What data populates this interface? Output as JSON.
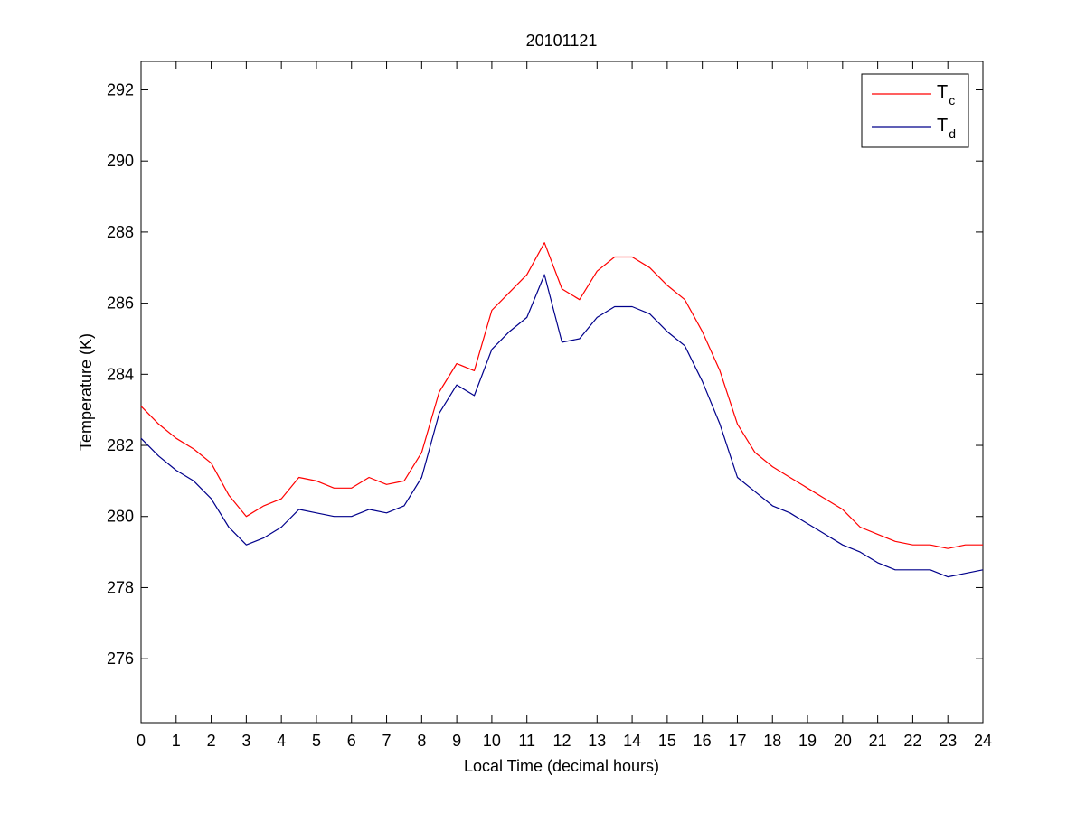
{
  "chart_data": {
    "type": "line",
    "title": "20101121",
    "xlabel": "Local Time (decimal hours)",
    "ylabel": "Temperature (K)",
    "xlim": [
      0,
      24
    ],
    "ylim": [
      274.2,
      292.8
    ],
    "xticks": [
      0,
      1,
      2,
      3,
      4,
      5,
      6,
      7,
      8,
      9,
      10,
      11,
      12,
      13,
      14,
      15,
      16,
      17,
      18,
      19,
      20,
      21,
      22,
      23,
      24
    ],
    "yticks": [
      276,
      278,
      280,
      282,
      284,
      286,
      288,
      290,
      292
    ],
    "grid": false,
    "legend_position": "top-right",
    "x": [
      0,
      0.5,
      1,
      1.5,
      2,
      2.5,
      3,
      3.5,
      4,
      4.5,
      5,
      5.5,
      6,
      6.5,
      7,
      7.5,
      8,
      8.5,
      9,
      9.5,
      10,
      10.5,
      11,
      11.5,
      12,
      12.5,
      13,
      13.5,
      14,
      14.5,
      15,
      15.5,
      16,
      16.5,
      17,
      17.5,
      18,
      18.5,
      19,
      19.5,
      20,
      20.5,
      21,
      21.5,
      22,
      22.5,
      23,
      23.5,
      24
    ],
    "series": [
      {
        "name": "T",
        "name_subscript": "c",
        "color": "#ff0000",
        "values": [
          283.1,
          282.6,
          282.2,
          281.9,
          281.5,
          280.6,
          280.0,
          280.3,
          280.5,
          281.1,
          281.0,
          280.8,
          280.8,
          281.1,
          280.9,
          281.0,
          281.8,
          283.5,
          284.3,
          284.1,
          285.8,
          286.3,
          286.8,
          287.7,
          286.4,
          286.1,
          286.9,
          287.3,
          287.3,
          287.0,
          286.5,
          286.1,
          285.2,
          284.1,
          282.6,
          281.8,
          281.4,
          281.1,
          280.8,
          280.5,
          280.2,
          279.7,
          279.5,
          279.3,
          279.2,
          279.2,
          279.1,
          279.2,
          279.2
        ]
      },
      {
        "name": "T",
        "name_subscript": "d",
        "color": "#00008b",
        "values": [
          282.2,
          281.7,
          281.3,
          281.0,
          280.5,
          279.7,
          279.2,
          279.4,
          279.7,
          280.2,
          280.1,
          280.0,
          280.0,
          280.2,
          280.1,
          280.3,
          281.1,
          282.9,
          283.7,
          283.4,
          284.7,
          285.2,
          285.6,
          286.8,
          284.9,
          285.0,
          285.6,
          285.9,
          285.9,
          285.7,
          285.2,
          284.8,
          283.8,
          282.6,
          281.1,
          280.7,
          280.3,
          280.1,
          279.8,
          279.5,
          279.2,
          279.0,
          278.7,
          278.5,
          278.5,
          278.5,
          278.3,
          278.4,
          278.5
        ]
      }
    ]
  }
}
